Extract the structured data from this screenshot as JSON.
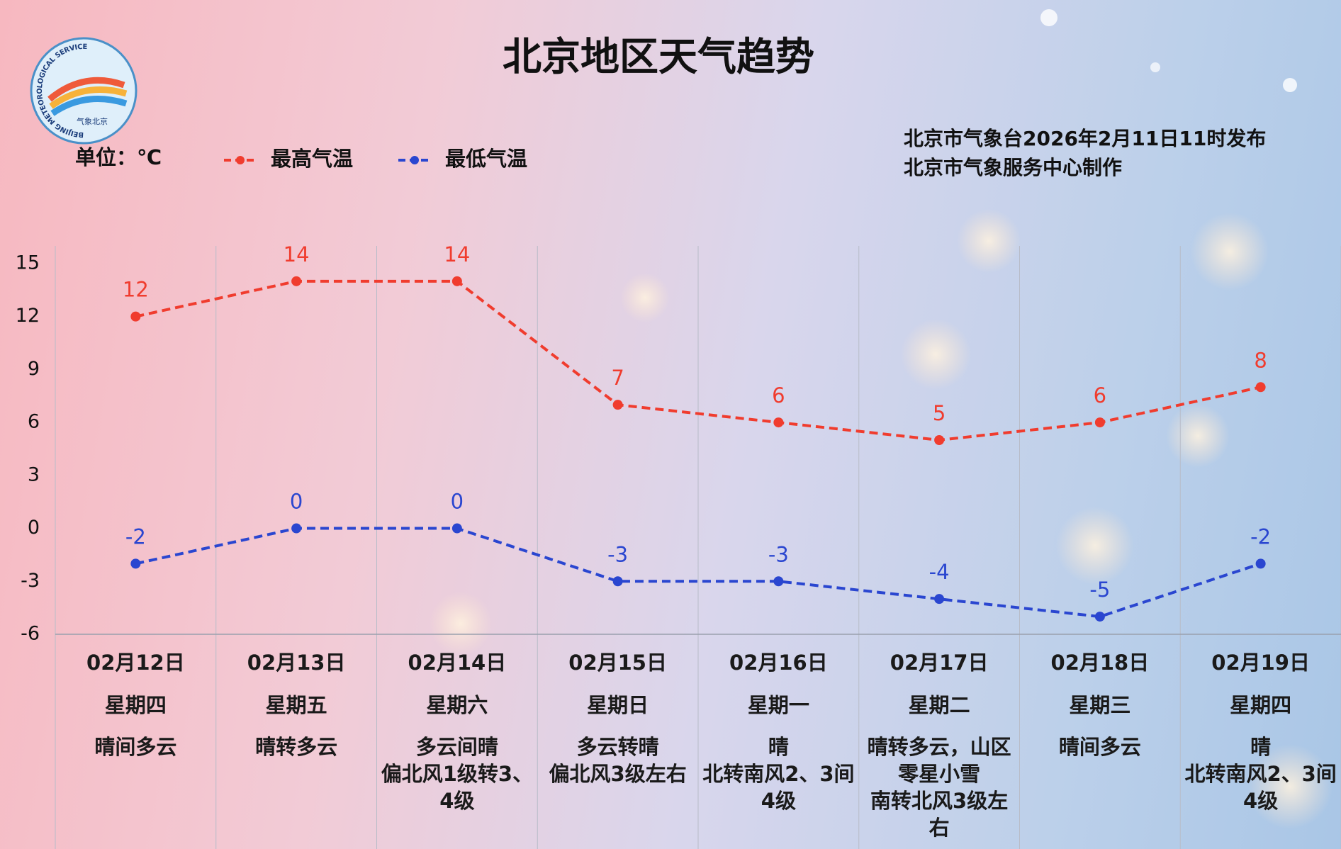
{
  "chart_data": {
    "type": "line",
    "title": "北京地区天气趋势",
    "unit_label": "单位：℃",
    "issuer": [
      "北京市气象台2026年2月11日11时发布",
      "北京市气象服务中心制作"
    ],
    "logo": {
      "ring_text": "BEIJING METEOROLOGICAL SERVICE",
      "name": "气象北京"
    },
    "categories": [
      "02月12日",
      "02月13日",
      "02月14日",
      "02月15日",
      "02月16日",
      "02月17日",
      "02月18日",
      "02月19日"
    ],
    "weekdays": [
      "星期四",
      "星期五",
      "星期六",
      "星期日",
      "星期一",
      "星期二",
      "星期三",
      "星期四"
    ],
    "weather": [
      "晴间多云",
      "晴转多云",
      "多云间晴",
      "多云转晴",
      "晴",
      "晴转多云，山区零星小雪",
      "晴间多云",
      "晴"
    ],
    "wind": [
      null,
      null,
      "偏北风1级转3、4级",
      "偏北风3级左右",
      "北转南风2、3间4级",
      "南转北风3级左右",
      null,
      "北转南风2、3间4级"
    ],
    "series": [
      {
        "name": "最高气温",
        "color": "#f03c2e",
        "values": [
          12,
          14,
          14,
          7,
          6,
          5,
          6,
          8
        ]
      },
      {
        "name": "最低气温",
        "color": "#2a46d0",
        "values": [
          -2,
          0,
          0,
          -3,
          -3,
          -4,
          -5,
          -2
        ]
      }
    ],
    "ylim": [
      -6,
      16
    ],
    "yticks": [
      -6,
      -3,
      0,
      3,
      6,
      9,
      12,
      15
    ],
    "grid": false
  }
}
